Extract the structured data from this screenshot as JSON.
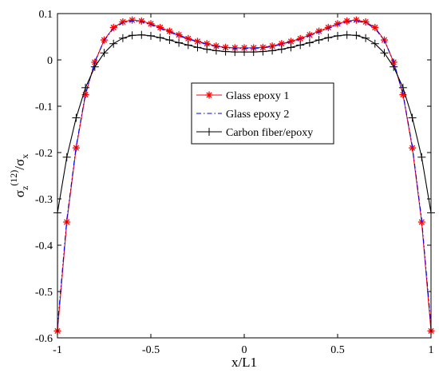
{
  "chart_data": {
    "type": "line",
    "xlabel": "x/L1",
    "ylabel": {
      "base": "σ",
      "sub": "z",
      "sup": "(12)",
      "slash": "/",
      "base2": "σ",
      "sub2": "x"
    },
    "xlim": [
      -1,
      1
    ],
    "ylim": [
      -0.6,
      0.1
    ],
    "xticks": [
      -1,
      -0.5,
      0,
      0.5,
      1
    ],
    "xtick_labels": [
      "-1",
      "-0.5",
      "0",
      "0.5",
      "1"
    ],
    "yticks": [
      0.1,
      0,
      -0.1,
      -0.2,
      -0.3,
      -0.4,
      -0.5,
      -0.6
    ],
    "ytick_labels": [
      "0.1",
      "0",
      "-0.1",
      "-0.2",
      "-0.3",
      "-0.4",
      "-0.5",
      "-0.6"
    ],
    "grid": false,
    "legend_position": "center-right",
    "x": [
      -1,
      -0.95,
      -0.9,
      -0.85,
      -0.8,
      -0.75,
      -0.7,
      -0.65,
      -0.6,
      -0.55,
      -0.5,
      -0.45,
      -0.4,
      -0.35,
      -0.3,
      -0.25,
      -0.2,
      -0.15,
      -0.1,
      -0.05,
      0,
      0.05,
      0.1,
      0.15,
      0.2,
      0.25,
      0.3,
      0.35,
      0.4,
      0.45,
      0.5,
      0.55,
      0.6,
      0.65,
      0.7,
      0.75,
      0.8,
      0.85,
      0.9,
      0.95,
      1
    ],
    "series": [
      {
        "name": "Glass epoxy 1",
        "color": "#ff0000",
        "style": "solid",
        "marker": "asterisk",
        "values": [
          -0.585,
          -0.35,
          -0.19,
          -0.075,
          -0.005,
          0.043,
          0.07,
          0.082,
          0.086,
          0.084,
          0.078,
          0.07,
          0.062,
          0.054,
          0.046,
          0.04,
          0.035,
          0.03,
          0.027,
          0.026,
          0.026,
          0.026,
          0.027,
          0.03,
          0.035,
          0.04,
          0.046,
          0.054,
          0.062,
          0.07,
          0.078,
          0.084,
          0.086,
          0.082,
          0.07,
          0.043,
          -0.005,
          -0.075,
          -0.19,
          -0.35,
          -0.585
        ]
      },
      {
        "name": "Glass epoxy 2",
        "color": "#0000ff",
        "style": "dashdot",
        "marker": "none",
        "values": [
          -0.575,
          -0.345,
          -0.187,
          -0.073,
          -0.004,
          0.042,
          0.068,
          0.08,
          0.084,
          0.082,
          0.076,
          0.068,
          0.06,
          0.052,
          0.045,
          0.039,
          0.034,
          0.029,
          0.026,
          0.025,
          0.025,
          0.025,
          0.026,
          0.029,
          0.034,
          0.039,
          0.045,
          0.052,
          0.06,
          0.068,
          0.076,
          0.082,
          0.084,
          0.08,
          0.068,
          0.042,
          -0.004,
          -0.073,
          -0.187,
          -0.345,
          -0.575
        ]
      },
      {
        "name": "Carbon fiber/epoxy",
        "color": "#000000",
        "style": "solid",
        "marker": "plus",
        "values": [
          -0.33,
          -0.21,
          -0.125,
          -0.06,
          -0.015,
          0.015,
          0.035,
          0.047,
          0.053,
          0.054,
          0.052,
          0.048,
          0.043,
          0.037,
          0.032,
          0.027,
          0.023,
          0.02,
          0.018,
          0.017,
          0.017,
          0.017,
          0.018,
          0.02,
          0.023,
          0.027,
          0.032,
          0.037,
          0.043,
          0.048,
          0.052,
          0.054,
          0.053,
          0.047,
          0.035,
          0.015,
          -0.015,
          -0.06,
          -0.125,
          -0.21,
          -0.33
        ]
      }
    ]
  }
}
